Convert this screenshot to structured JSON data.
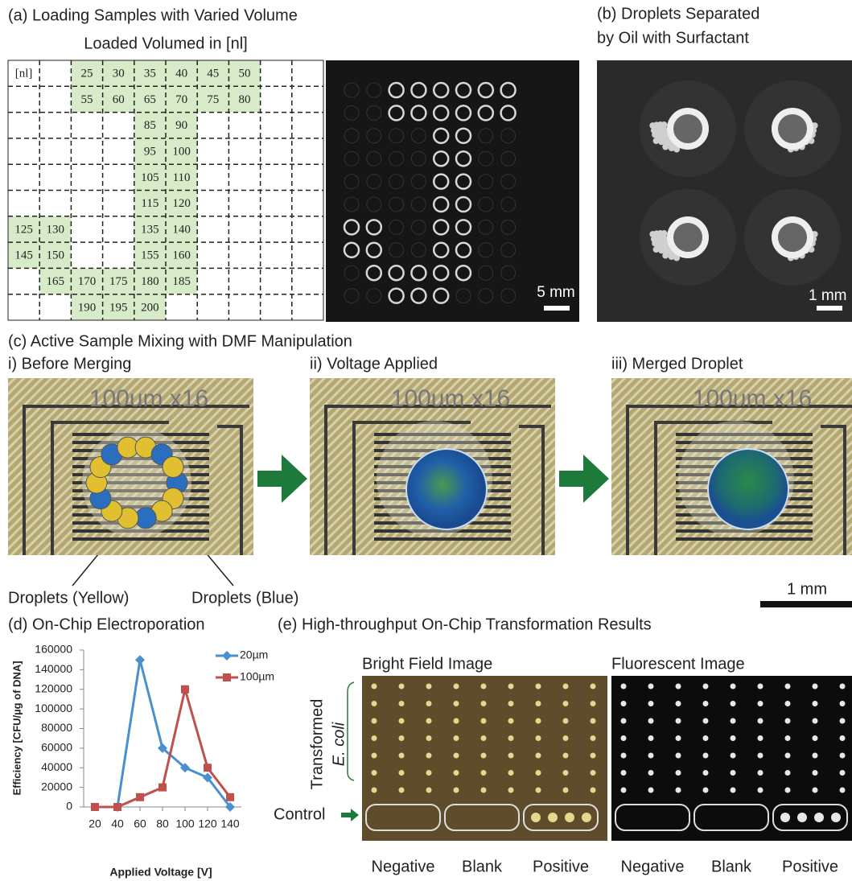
{
  "panel_a": {
    "title": "(a) Loading Samples with Varied Volume",
    "subtitle": "Loaded Volumed in [nl]",
    "table": {
      "rows": [
        [
          "[nl]",
          null,
          25,
          30,
          35,
          40,
          45,
          50,
          null,
          null
        ],
        [
          null,
          null,
          55,
          60,
          65,
          70,
          75,
          80,
          null,
          null
        ],
        [
          null,
          null,
          null,
          null,
          85,
          90,
          null,
          null,
          null,
          null
        ],
        [
          null,
          null,
          null,
          null,
          95,
          100,
          null,
          null,
          null,
          null
        ],
        [
          null,
          null,
          null,
          null,
          105,
          110,
          null,
          null,
          null,
          null
        ],
        [
          null,
          null,
          null,
          null,
          115,
          120,
          null,
          null,
          null,
          null
        ],
        [
          125,
          130,
          null,
          null,
          135,
          140,
          null,
          null,
          null,
          null
        ],
        [
          145,
          150,
          null,
          null,
          155,
          160,
          null,
          null,
          null,
          null
        ],
        [
          null,
          165,
          170,
          175,
          180,
          185,
          null,
          null,
          null,
          null
        ],
        [
          null,
          null,
          190,
          195,
          200,
          null,
          null,
          null,
          null,
          null
        ]
      ]
    },
    "scale_label": "5 mm"
  },
  "panel_b": {
    "title_line1": "(b) Droplets Separated",
    "title_line2": "by Oil with Surfactant",
    "scale_label": "1 mm"
  },
  "panel_c": {
    "title": "(c) Active Sample Mixing with DMF Manipulation",
    "steps": [
      {
        "label": "i) Before Merging",
        "image_label": "100um x16"
      },
      {
        "label": "ii) Voltage Applied",
        "image_label": "100um x16"
      },
      {
        "label": "iii) Merged Droplet",
        "image_label": "100um x16"
      }
    ],
    "annotations": [
      "Droplets (Yellow)",
      "Droplets (Blue)"
    ],
    "scale_label": "1 mm"
  },
  "chart_data": {
    "type": "line",
    "title": "(d) On-Chip Electroporation",
    "x_label": "Applied Voltage [V]",
    "y_label": "Efficiency [CFU/µg of DNA]",
    "x": [
      20,
      40,
      60,
      80,
      100,
      120,
      140
    ],
    "xlim": [
      10,
      150
    ],
    "xticks": [
      20,
      40,
      60,
      80,
      100,
      120,
      140
    ],
    "ylim": [
      0,
      160000
    ],
    "yticks": [
      0,
      20000,
      40000,
      60000,
      80000,
      100000,
      120000,
      140000,
      160000
    ],
    "series": [
      {
        "name": "20µm",
        "color": "#4a8fd0",
        "marker": "diamond",
        "values": [
          null,
          0,
          150000,
          60000,
          40000,
          30000,
          0
        ]
      },
      {
        "name": "100µm",
        "color": "#c0504d",
        "marker": "square",
        "values": [
          0,
          0,
          10000,
          20000,
          120000,
          40000,
          10000
        ]
      }
    ]
  },
  "panel_e": {
    "title": "(e) High-throughput On-Chip Transformation Results",
    "images": [
      {
        "title": "Bright Field Image",
        "groups": [
          "Negative",
          "Blank",
          "Positive"
        ]
      },
      {
        "title": "Fluorescent Image",
        "groups": [
          "Negative",
          "Blank",
          "Positive"
        ]
      }
    ],
    "row_label_1": "Transformed",
    "row_label_2": "E. coli",
    "control_label": "Control"
  }
}
